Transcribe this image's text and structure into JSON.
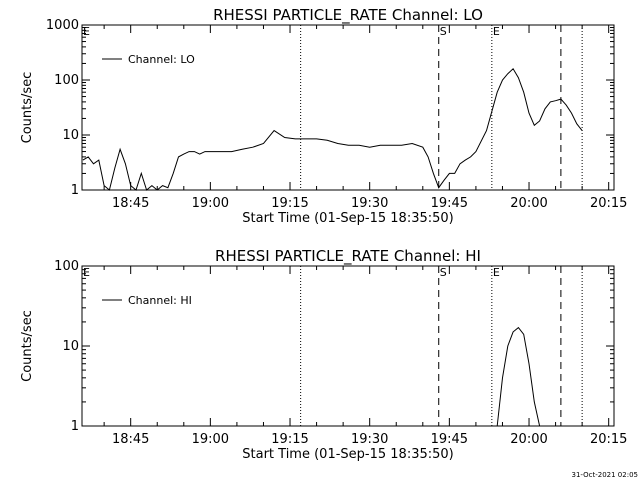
{
  "stamp": "31-Oct-2021 02:05",
  "chart_data": [
    {
      "type": "line",
      "title": "RHESSI PARTICLE_RATE Channel: LO",
      "xlabel": "Start Time (01-Sep-15 18:35:50)",
      "ylabel": "Counts/sec",
      "yscale": "log",
      "ylim": [
        1,
        1000
      ],
      "xlim": [
        "18:35:50",
        "20:16:00"
      ],
      "x_ticks": [
        "18:45",
        "19:00",
        "19:15",
        "19:30",
        "19:45",
        "20:00",
        "20:15"
      ],
      "y_ticks": [
        "1",
        "10",
        "100",
        "1000"
      ],
      "legend": {
        "position": "top-left"
      },
      "markers": [
        {
          "time": "19:17",
          "style": "dotted",
          "label": ""
        },
        {
          "time": "19:43",
          "style": "dashed",
          "label": "S"
        },
        {
          "time": "19:53",
          "style": "dotted",
          "label": "E"
        },
        {
          "time": "20:06",
          "style": "dashed",
          "label": ""
        },
        {
          "time": "20:10",
          "style": "dotted",
          "label": ""
        }
      ],
      "corner_letters": [
        "E"
      ],
      "series": [
        {
          "name": "Channel: LO",
          "x": [
            "18:36",
            "18:37",
            "18:38",
            "18:39",
            "18:40",
            "18:41",
            "18:42",
            "18:43",
            "18:44",
            "18:45",
            "18:46",
            "18:47",
            "18:48",
            "18:49",
            "18:50",
            "18:51",
            "18:52",
            "18:53",
            "18:54",
            "18:55",
            "18:56",
            "18:57",
            "18:58",
            "18:59",
            "19:00",
            "19:02",
            "19:04",
            "19:06",
            "19:08",
            "19:10",
            "19:12",
            "19:14",
            "19:16",
            "19:18",
            "19:20",
            "19:22",
            "19:24",
            "19:26",
            "19:28",
            "19:30",
            "19:32",
            "19:34",
            "19:36",
            "19:38",
            "19:40",
            "19:41",
            "19:42",
            "19:43",
            "19:44",
            "19:45",
            "19:46",
            "19:47",
            "19:48",
            "19:49",
            "19:50",
            "19:52",
            "19:54",
            "19:55",
            "19:56",
            "19:57",
            "19:58",
            "19:59",
            "20:00",
            "20:01",
            "20:02",
            "20:03",
            "20:04",
            "20:05",
            "20:06",
            "20:07",
            "20:08",
            "20:09",
            "20:10"
          ],
          "y": [
            3.5,
            4,
            3,
            3.5,
            1.2,
            1,
            2.5,
            5.5,
            3,
            1.2,
            1,
            2,
            1,
            1.2,
            1,
            1.2,
            1.1,
            2,
            4,
            4.5,
            5,
            5,
            4.5,
            5,
            5,
            5,
            5,
            5.5,
            6,
            7,
            12,
            9,
            8.5,
            8.5,
            8.5,
            8,
            7,
            6.5,
            6.5,
            6,
            6.5,
            6.5,
            6.5,
            7,
            6,
            4,
            2,
            1.1,
            1.5,
            2,
            2,
            3,
            3.5,
            4,
            5,
            12,
            60,
            100,
            130,
            160,
            110,
            60,
            25,
            15,
            18,
            30,
            40,
            42,
            45,
            35,
            25,
            16,
            12
          ]
        }
      ]
    },
    {
      "type": "line",
      "title": "RHESSI PARTICLE_RATE Channel: HI",
      "xlabel": "Start Time (01-Sep-15 18:35:50)",
      "ylabel": "Counts/sec",
      "yscale": "log",
      "ylim": [
        1,
        100
      ],
      "xlim": [
        "18:35:50",
        "20:16:00"
      ],
      "x_ticks": [
        "18:45",
        "19:00",
        "19:15",
        "19:30",
        "19:45",
        "20:00",
        "20:15"
      ],
      "y_ticks": [
        "1",
        "10",
        "100"
      ],
      "legend": {
        "position": "top-left"
      },
      "markers": [
        {
          "time": "19:17",
          "style": "dotted",
          "label": ""
        },
        {
          "time": "19:43",
          "style": "dashed",
          "label": "S"
        },
        {
          "time": "19:53",
          "style": "dotted",
          "label": "E"
        },
        {
          "time": "20:06",
          "style": "dashed",
          "label": ""
        },
        {
          "time": "20:10",
          "style": "dotted",
          "label": ""
        }
      ],
      "corner_letters": [
        "E"
      ],
      "series": [
        {
          "name": "Channel: HI",
          "x": [
            "19:54",
            "19:55",
            "19:56",
            "19:57",
            "19:58",
            "19:59",
            "20:00",
            "20:01",
            "20:02"
          ],
          "y": [
            1,
            4,
            10,
            15,
            17,
            14,
            6,
            2,
            1
          ]
        }
      ]
    }
  ]
}
